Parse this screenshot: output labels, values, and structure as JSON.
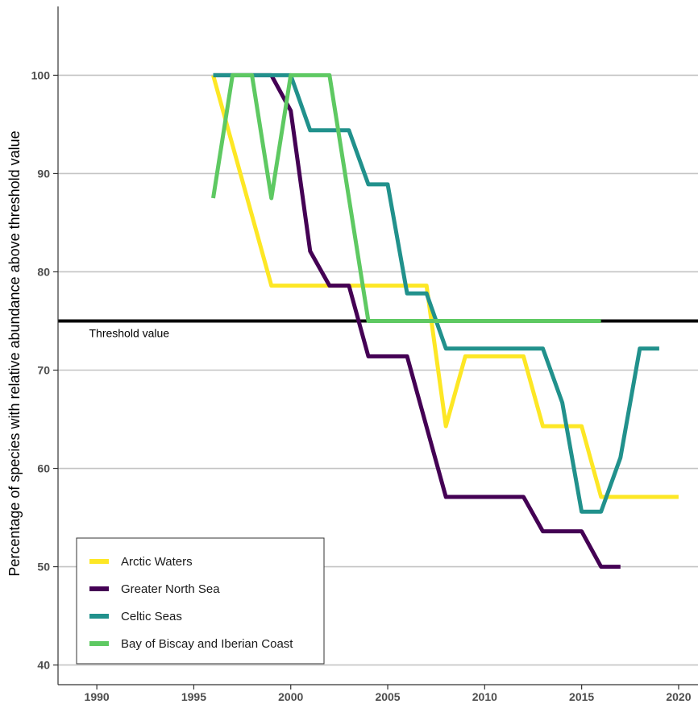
{
  "chart_data": {
    "type": "line",
    "title": "",
    "xlabel": "",
    "ylabel": "Percentage of species with relative abundance above threshold value",
    "xlim": [
      1988,
      2021
    ],
    "ylim": [
      38,
      107
    ],
    "x_ticks": [
      1990,
      1995,
      2000,
      2005,
      2010,
      2015,
      2020
    ],
    "y_ticks": [
      40,
      50,
      60,
      70,
      80,
      90,
      100
    ],
    "grid": "horizontal-major",
    "legend_position": "bottom-left",
    "threshold": {
      "value": 75,
      "label": "Threshold value",
      "color": "#000000"
    },
    "series": [
      {
        "name": "Arctic Waters",
        "color": "#FDE725",
        "x": [
          1996,
          1999,
          2007,
          2008,
          2009,
          2012,
          2013,
          2015,
          2016,
          2020
        ],
        "y": [
          100,
          78.6,
          78.6,
          64.3,
          71.4,
          71.4,
          64.3,
          64.3,
          57.1,
          57.1
        ]
      },
      {
        "name": "Greater North Sea",
        "color": "#440154",
        "x": [
          1996,
          1999,
          2000,
          2001,
          2002,
          2003,
          2004,
          2006,
          2008,
          2012,
          2013,
          2015,
          2016,
          2017
        ],
        "y": [
          100,
          100,
          96.4,
          82.1,
          78.6,
          78.6,
          71.4,
          71.4,
          57.1,
          57.1,
          53.6,
          53.6,
          50,
          50
        ]
      },
      {
        "name": "Celtic Seas",
        "color": "#21918C",
        "x": [
          1996,
          2000,
          2001,
          2003,
          2004,
          2005,
          2006,
          2007,
          2008,
          2013,
          2014,
          2015,
          2016,
          2017,
          2018,
          2019
        ],
        "y": [
          100,
          100,
          94.4,
          94.4,
          88.9,
          88.9,
          77.8,
          77.8,
          72.2,
          72.2,
          66.7,
          55.6,
          55.6,
          61.1,
          72.2,
          72.2
        ]
      },
      {
        "name": "Bay of Biscay and Iberian Coast",
        "color": "#5EC962",
        "x": [
          1996,
          1997,
          1998,
          1999,
          2000,
          2002,
          2004,
          2016
        ],
        "y": [
          87.5,
          100,
          100,
          87.5,
          100,
          100,
          75,
          75
        ]
      }
    ]
  }
}
